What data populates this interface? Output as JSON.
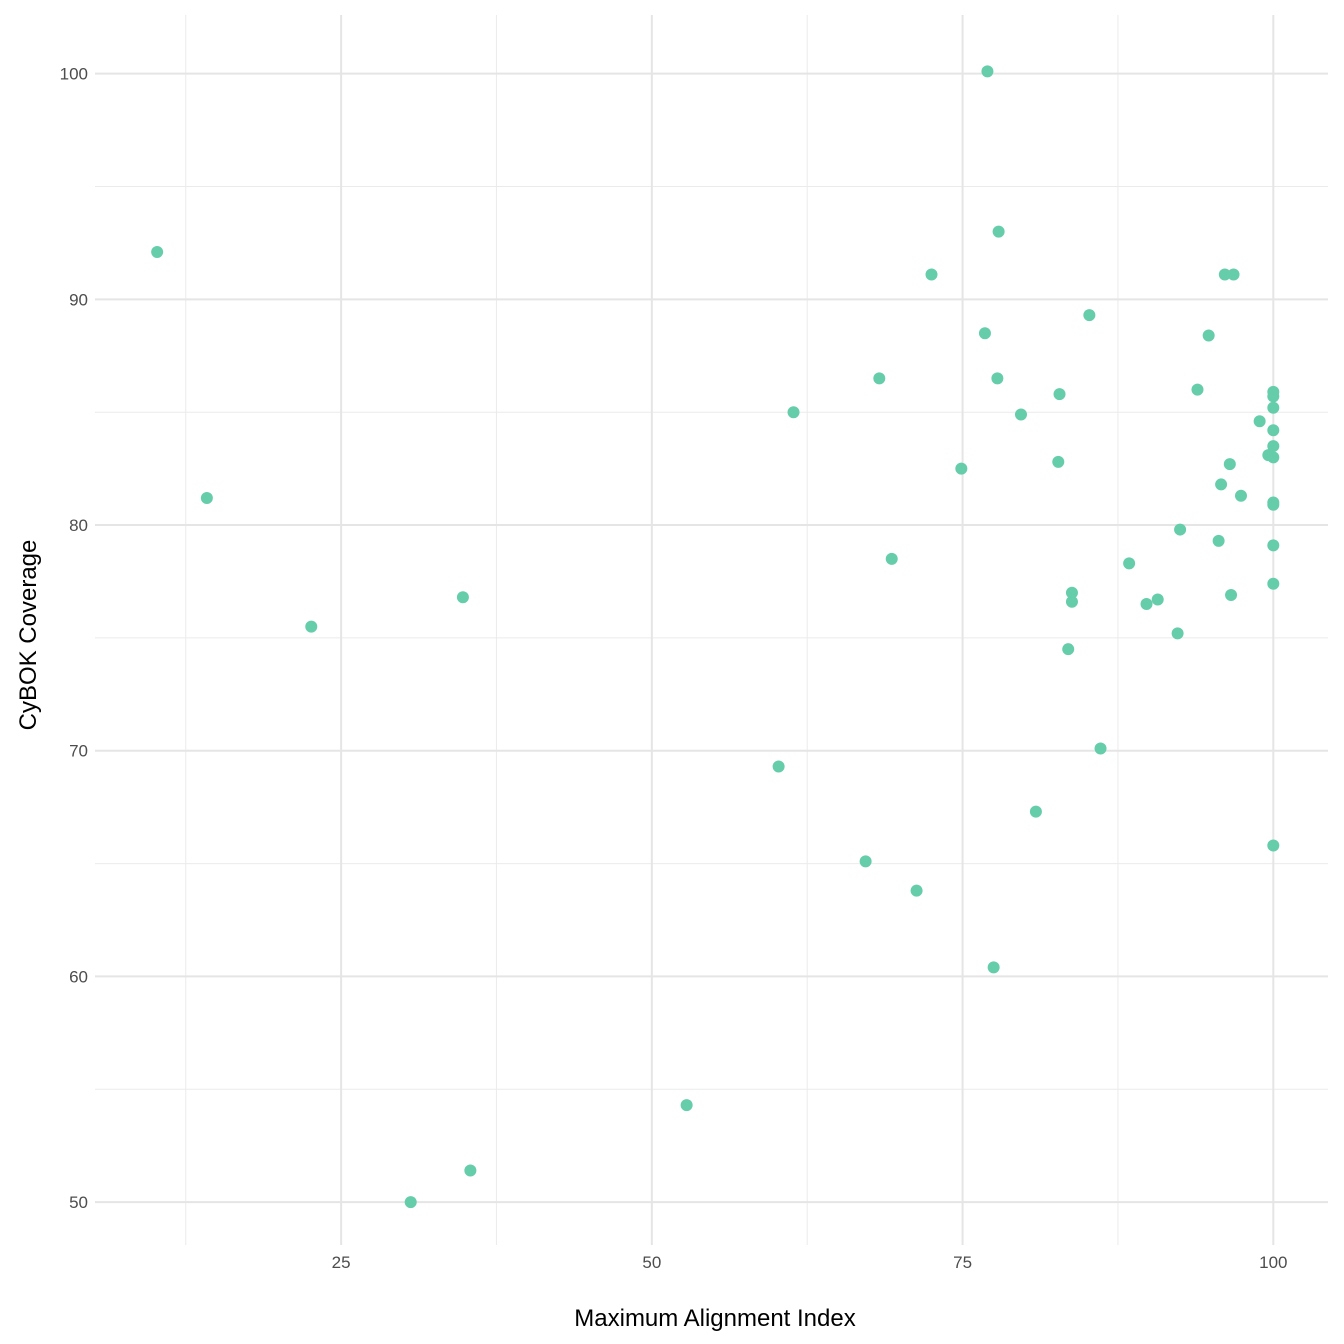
{
  "chart_data": {
    "type": "scatter",
    "xlabel": "Maximum Alignment Index",
    "ylabel": "CyBOK Coverage",
    "xlim": [
      5.2,
      104.4
    ],
    "ylim": [
      48.1,
      102.6
    ],
    "xticks": [
      25,
      50,
      75,
      100
    ],
    "yticks": [
      50,
      60,
      70,
      80,
      90,
      100
    ],
    "grid": true,
    "point_color": "#66cdaa",
    "points": [
      [
        77.0,
        100.1
      ],
      [
        10.2,
        92.1
      ],
      [
        77.9,
        93.0
      ],
      [
        72.5,
        91.1
      ],
      [
        96.1,
        91.1
      ],
      [
        96.8,
        91.1
      ],
      [
        85.2,
        89.3
      ],
      [
        76.8,
        88.5
      ],
      [
        94.8,
        88.4
      ],
      [
        68.3,
        86.5
      ],
      [
        77.8,
        86.5
      ],
      [
        93.9,
        86.0
      ],
      [
        100,
        85.9
      ],
      [
        100,
        85.7
      ],
      [
        82.8,
        85.8
      ],
      [
        61.4,
        85.0
      ],
      [
        100,
        85.2
      ],
      [
        79.7,
        84.9
      ],
      [
        98.9,
        84.6
      ],
      [
        100,
        84.2
      ],
      [
        100,
        83.5
      ],
      [
        99.6,
        83.1
      ],
      [
        100,
        83.0
      ],
      [
        96.5,
        82.7
      ],
      [
        82.7,
        82.8
      ],
      [
        74.9,
        82.5
      ],
      [
        95.8,
        81.8
      ],
      [
        97.4,
        81.3
      ],
      [
        14.2,
        81.2
      ],
      [
        100,
        81.0
      ],
      [
        100,
        80.9
      ],
      [
        92.5,
        79.8
      ],
      [
        95.6,
        79.3
      ],
      [
        100,
        79.1
      ],
      [
        69.3,
        78.5
      ],
      [
        88.4,
        78.3
      ],
      [
        100,
        77.4
      ],
      [
        34.8,
        76.8
      ],
      [
        83.8,
        77.0
      ],
      [
        83.8,
        76.6
      ],
      [
        96.6,
        76.9
      ],
      [
        90.7,
        76.7
      ],
      [
        89.8,
        76.5
      ],
      [
        22.6,
        75.5
      ],
      [
        92.3,
        75.2
      ],
      [
        83.5,
        74.5
      ],
      [
        86.1,
        70.1
      ],
      [
        60.2,
        69.3
      ],
      [
        80.9,
        67.3
      ],
      [
        100,
        65.8
      ],
      [
        67.2,
        65.1
      ],
      [
        71.3,
        63.8
      ],
      [
        77.5,
        60.4
      ],
      [
        52.8,
        54.3
      ],
      [
        35.4,
        51.4
      ],
      [
        30.6,
        50.0
      ]
    ]
  }
}
